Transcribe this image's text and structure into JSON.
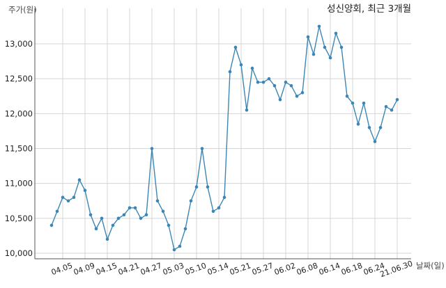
{
  "chart_data": {
    "type": "line",
    "title": "성신양회, 최근 3개월",
    "ylabel": "주가(원)",
    "xlabel": "날짜(일)",
    "ylim": [
      9950,
      13350
    ],
    "yticks": [
      10000,
      10500,
      11000,
      11500,
      12000,
      12500,
      13000
    ],
    "ytick_labels": [
      "10,000",
      "10,500",
      "11,000",
      "11,500",
      "12,000",
      "12,500",
      "13,000"
    ],
    "xtick_labels": [
      "04.05",
      "04.09",
      "04.15",
      "04.21",
      "04.27",
      "05.03",
      "05.10",
      "05.14",
      "05.21",
      "05.27",
      "06.02",
      "06.08",
      "06.14",
      "06.18",
      "06.24",
      "21.06.30"
    ],
    "xtick_index": [
      2,
      6,
      10,
      14,
      18,
      22,
      26,
      30,
      34,
      38,
      42,
      46,
      50,
      54,
      58,
      62
    ],
    "grid": true,
    "line_color": "#3b86b5",
    "series": [
      {
        "values": [
          10400,
          10600,
          10800,
          10750,
          10800,
          11050,
          10900,
          10550,
          10350,
          10500,
          10200,
          10400,
          10500,
          10550,
          10650,
          10650,
          10500,
          10550,
          11500,
          10750,
          10600,
          10400,
          10050,
          10100,
          10350,
          10750,
          10950,
          11500,
          10950,
          10600,
          10650,
          10800,
          12600,
          12950,
          12700,
          12050,
          12650,
          12450,
          12450,
          12500,
          12400,
          12200,
          12450,
          12400,
          12250,
          12300,
          13100,
          12850,
          13250,
          12950,
          12800,
          13150,
          12950,
          12250,
          12150,
          11850,
          12150,
          11800,
          11600,
          11800,
          12100,
          12050,
          12200
        ]
      }
    ]
  }
}
